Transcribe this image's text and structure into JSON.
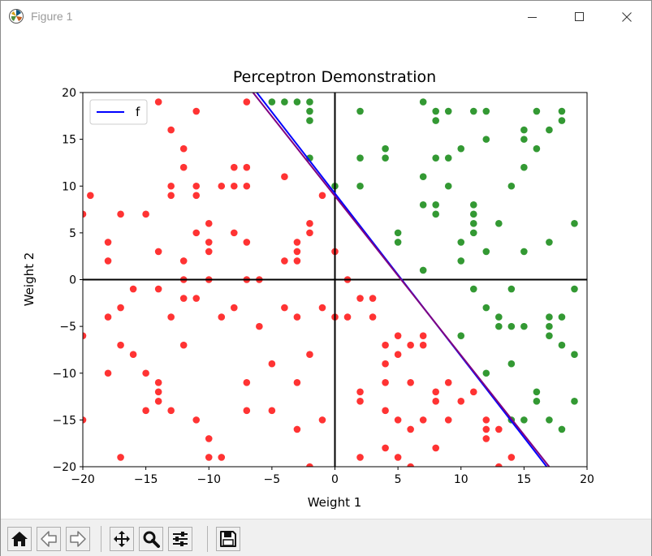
{
  "window": {
    "title": "Figure 1",
    "app_icon": "matplotlib-icon",
    "controls": [
      "minimize-icon",
      "maximize-icon",
      "close-icon"
    ]
  },
  "toolbar": {
    "buttons": [
      "home-icon",
      "back-arrow-icon",
      "forward-arrow-icon",
      "pan-icon",
      "zoom-icon",
      "configure-subplots-icon",
      "save-icon"
    ]
  },
  "chart_data": {
    "type": "scatter",
    "title": "Perceptron Demonstration",
    "xlabel": "Weight 1",
    "ylabel": "Weight 2",
    "xlim": [
      -20,
      20
    ],
    "ylim": [
      -20,
      20
    ],
    "xticks": [
      -20,
      -15,
      -10,
      -5,
      0,
      5,
      10,
      15,
      20
    ],
    "yticks": [
      -20,
      -15,
      -10,
      -5,
      0,
      5,
      10,
      15,
      20
    ],
    "xtick_labels": [
      "−20",
      "−15",
      "−10",
      "−5",
      "0",
      "5",
      "10",
      "15",
      "20"
    ],
    "ytick_labels": [
      "−20",
      "−15",
      "−10",
      "−5",
      "0",
      "5",
      "10",
      "15",
      "20"
    ],
    "grid": false,
    "legend": {
      "position": "upper-left",
      "entries": [
        {
          "label": "f",
          "color": "#0000ff"
        }
      ]
    },
    "colors": {
      "red_points": "#ff0000",
      "green_points": "#008000",
      "line_f": "#0000ff",
      "line_g": "#800080",
      "axes_lines": "#000000"
    },
    "lines": [
      {
        "name": "f",
        "color": "#0000ff",
        "points": [
          [
            -6.2,
            20
          ],
          [
            16.8,
            -20
          ]
        ]
      },
      {
        "color": "#800080",
        "points": [
          [
            -6.5,
            20
          ],
          [
            17.0,
            -20
          ]
        ]
      }
    ],
    "reference_lines": [
      {
        "orientation": "vertical",
        "value": 0
      },
      {
        "orientation": "horizontal",
        "value": 0
      }
    ],
    "series": [
      {
        "color": "#ff0000",
        "points": [
          [
            -20,
            7
          ],
          [
            -19.4,
            9
          ],
          [
            -18,
            4
          ],
          [
            -18,
            2
          ],
          [
            -17,
            7
          ],
          [
            -15,
            7
          ],
          [
            -14,
            19
          ],
          [
            -14,
            3
          ],
          [
            -13,
            16
          ],
          [
            -13,
            10
          ],
          [
            -13,
            9
          ],
          [
            -12,
            14
          ],
          [
            -12,
            12
          ],
          [
            -12,
            2
          ],
          [
            -11,
            18
          ],
          [
            -11,
            10
          ],
          [
            -11,
            9
          ],
          [
            -11,
            5
          ],
          [
            -10,
            6
          ],
          [
            -10,
            4
          ],
          [
            -10,
            3
          ],
          [
            -9,
            10
          ],
          [
            -8,
            12
          ],
          [
            -8,
            10
          ],
          [
            -8,
            5
          ],
          [
            -7,
            19
          ],
          [
            -7,
            12
          ],
          [
            -7,
            10
          ],
          [
            -7,
            4
          ],
          [
            -4,
            11
          ],
          [
            -4,
            2
          ],
          [
            -3,
            4
          ],
          [
            -3,
            3
          ],
          [
            -3,
            2
          ],
          [
            -2,
            6
          ],
          [
            -2,
            5
          ],
          [
            -1,
            9
          ],
          [
            0,
            3
          ],
          [
            -16,
            -1
          ],
          [
            -14,
            -1
          ],
          [
            -12,
            0
          ],
          [
            -12,
            -2
          ],
          [
            -10,
            0
          ],
          [
            -11,
            -2
          ],
          [
            -7,
            0
          ],
          [
            -6,
            0
          ],
          [
            -18,
            -4
          ],
          [
            -17,
            -3
          ],
          [
            -13,
            -4
          ],
          [
            -9,
            -4
          ],
          [
            -8,
            -3
          ],
          [
            -6,
            -5
          ],
          [
            -4,
            -3
          ],
          [
            -3,
            -4
          ],
          [
            -1,
            -3
          ],
          [
            1,
            0
          ],
          [
            -20,
            -6
          ],
          [
            -17,
            -7
          ],
          [
            -16,
            -8
          ],
          [
            -12,
            -7
          ],
          [
            -5,
            -9
          ],
          [
            -2,
            -8
          ],
          [
            0,
            -4
          ],
          [
            1,
            -4
          ],
          [
            2,
            -2
          ],
          [
            3,
            -2
          ],
          [
            3,
            -4
          ],
          [
            5,
            -6
          ],
          [
            4,
            -7
          ],
          [
            5,
            -8
          ],
          [
            6,
            -7
          ],
          [
            4,
            -9
          ],
          [
            7,
            -6
          ],
          [
            7,
            -7
          ],
          [
            -18,
            -10
          ],
          [
            -15,
            -10
          ],
          [
            -14,
            -11
          ],
          [
            -14,
            -12
          ],
          [
            -7,
            -11
          ],
          [
            -3,
            -11
          ],
          [
            4,
            -11
          ],
          [
            -20,
            -15
          ],
          [
            -15,
            -14
          ],
          [
            -14,
            -13
          ],
          [
            -13,
            -14
          ],
          [
            -11,
            -15
          ],
          [
            -10,
            -17
          ],
          [
            -7,
            -14
          ],
          [
            -5,
            -14
          ],
          [
            -3,
            -16
          ],
          [
            -1,
            -15
          ],
          [
            2,
            -12
          ],
          [
            2,
            -13
          ],
          [
            4,
            -14
          ],
          [
            5,
            -15
          ],
          [
            6,
            -16
          ],
          [
            6,
            -11
          ],
          [
            7,
            -15
          ],
          [
            8,
            -12
          ],
          [
            8,
            -13
          ],
          [
            9,
            -11
          ],
          [
            9,
            -15
          ],
          [
            10,
            -13
          ],
          [
            11,
            -12
          ],
          [
            12,
            -15
          ],
          [
            12,
            -16
          ],
          [
            12,
            -17
          ],
          [
            13,
            -16
          ],
          [
            -17,
            -19
          ],
          [
            -10,
            -19
          ],
          [
            -9,
            -19
          ],
          [
            -2,
            -20
          ],
          [
            2,
            -19
          ],
          [
            4,
            -18
          ],
          [
            5,
            -19
          ],
          [
            6,
            -20
          ],
          [
            8,
            -18
          ],
          [
            13,
            -20
          ],
          [
            14,
            -19
          ]
        ]
      },
      {
        "color": "#008000",
        "points": [
          [
            -5,
            19
          ],
          [
            -4,
            19
          ],
          [
            -3,
            19
          ],
          [
            -2,
            19
          ],
          [
            -2,
            18
          ],
          [
            -2,
            17
          ],
          [
            2,
            18
          ],
          [
            7,
            19
          ],
          [
            8,
            18
          ],
          [
            8,
            17
          ],
          [
            9,
            18
          ],
          [
            11,
            18
          ],
          [
            12,
            18
          ],
          [
            16,
            18
          ],
          [
            18,
            18
          ],
          [
            18,
            17
          ],
          [
            17,
            16
          ],
          [
            15,
            16
          ],
          [
            12,
            15
          ],
          [
            15,
            15
          ],
          [
            16,
            14
          ],
          [
            4,
            14
          ],
          [
            10,
            14
          ],
          [
            2,
            13
          ],
          [
            4,
            13
          ],
          [
            8,
            13
          ],
          [
            9,
            13
          ],
          [
            15,
            12
          ],
          [
            -2,
            13
          ],
          [
            7,
            11
          ],
          [
            0,
            10
          ],
          [
            2,
            10
          ],
          [
            9,
            10
          ],
          [
            14,
            10
          ],
          [
            7,
            8
          ],
          [
            8,
            8
          ],
          [
            11,
            8
          ],
          [
            8,
            7
          ],
          [
            11,
            7
          ],
          [
            11,
            6
          ],
          [
            13,
            6
          ],
          [
            19,
            6
          ],
          [
            5,
            5
          ],
          [
            11,
            5
          ],
          [
            5,
            4
          ],
          [
            10,
            4
          ],
          [
            17,
            4
          ],
          [
            12,
            3
          ],
          [
            15,
            3
          ],
          [
            10,
            2
          ],
          [
            7,
            1
          ],
          [
            11,
            -1
          ],
          [
            14,
            -1
          ],
          [
            19,
            -1
          ],
          [
            12,
            -3
          ],
          [
            13,
            -4
          ],
          [
            17,
            -4
          ],
          [
            18,
            -4
          ],
          [
            13,
            -5
          ],
          [
            14,
            -5
          ],
          [
            15,
            -5
          ],
          [
            17,
            -5
          ],
          [
            10,
            -6
          ],
          [
            17,
            -6
          ],
          [
            18,
            -7
          ],
          [
            19,
            -8
          ],
          [
            14,
            -9
          ],
          [
            12,
            -10
          ],
          [
            16,
            -12
          ],
          [
            16,
            -13
          ],
          [
            19,
            -13
          ],
          [
            14,
            -15
          ],
          [
            15,
            -15
          ],
          [
            17,
            -15
          ],
          [
            18,
            -16
          ]
        ]
      }
    ]
  }
}
